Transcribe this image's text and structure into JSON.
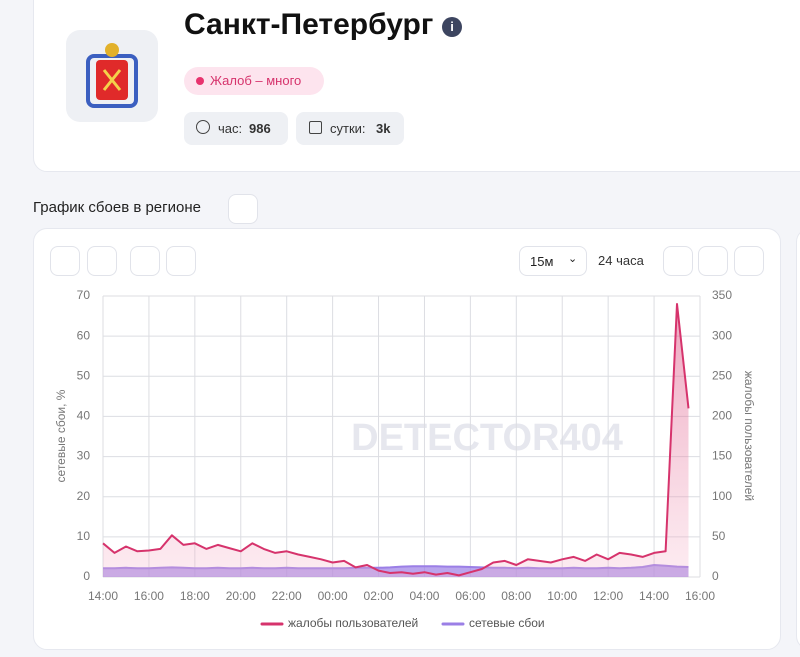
{
  "header": {
    "title": "Санкт-Петербург",
    "badge": "Жалоб – много",
    "hour_label": "час:",
    "hour_value": "986",
    "day_label": "сутки:",
    "day_value": "3k"
  },
  "section_title": "График сбоев в регионе",
  "controls": {
    "interval": "15м",
    "period": "24 часа"
  },
  "watermark": "DETECTOR404",
  "chart_data": {
    "type": "line",
    "categories": [
      "14:00",
      null,
      null,
      null,
      "16:00",
      null,
      null,
      null,
      "18:00",
      null,
      null,
      null,
      "20:00",
      null,
      null,
      null,
      "22:00",
      null,
      null,
      null,
      "00:00",
      null,
      null,
      null,
      "02:00",
      null,
      null,
      null,
      "04:00",
      null,
      null,
      null,
      "06:00",
      null,
      null,
      null,
      "08:00",
      null,
      null,
      null,
      "10:00",
      null,
      null,
      null,
      "12:00",
      null,
      null,
      null,
      "14:00",
      null,
      null,
      null,
      "16:00"
    ],
    "series": [
      {
        "name": "жалобы пользователей",
        "color": "#d6336c",
        "axis": "y2",
        "values": [
          42,
          30,
          38,
          32,
          33,
          35,
          52,
          40,
          42,
          35,
          40,
          36,
          32,
          42,
          35,
          30,
          32,
          28,
          25,
          22,
          18,
          20,
          12,
          15,
          8,
          5,
          6,
          4,
          6,
          3,
          5,
          2,
          6,
          10,
          18,
          20,
          15,
          22,
          20,
          18,
          22,
          25,
          20,
          28,
          22,
          30,
          28,
          25,
          30,
          32,
          340,
          210,
          null
        ]
      },
      {
        "name": "сетевые сбои",
        "color": "#9b7fe6",
        "values": [
          2.2,
          2.2,
          2.3,
          2.2,
          2.2,
          2.3,
          2.4,
          2.3,
          2.2,
          2.2,
          2.3,
          2.2,
          2.2,
          2.3,
          2.2,
          2.2,
          2.3,
          2.2,
          2.2,
          2.2,
          2.2,
          2.2,
          2.3,
          2.3,
          2.3,
          2.4,
          2.6,
          2.7,
          2.7,
          2.7,
          2.6,
          2.6,
          2.5,
          2.4,
          2.3,
          2.3,
          2.2,
          2.3,
          2.2,
          2.2,
          2.2,
          2.3,
          2.2,
          2.2,
          2.3,
          2.2,
          2.3,
          2.5,
          3.0,
          2.8,
          2.6,
          2.5,
          null
        ]
      }
    ],
    "ylim": [
      0,
      70
    ],
    "yticks": [
      0,
      10,
      20,
      30,
      40,
      50,
      60,
      70
    ],
    "ylabel": "сетевые сбои, %",
    "y2lim": [
      0,
      350
    ],
    "y2ticks": [
      0,
      50,
      100,
      150,
      200,
      250,
      300,
      350
    ],
    "y2label": "жалобы пользователей",
    "grid": true
  }
}
